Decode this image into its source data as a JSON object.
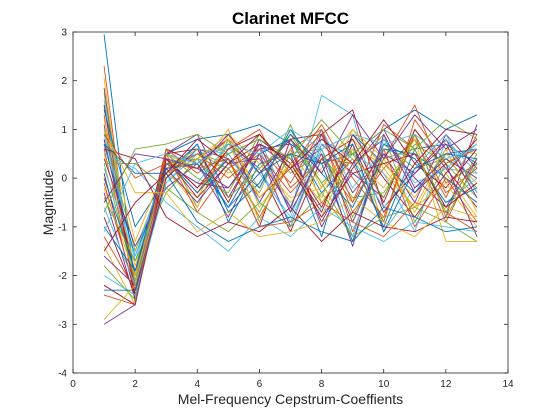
{
  "chart_data": {
    "type": "line",
    "title": "Clarinet MFCC",
    "xlabel": "Mel-Frequency Cepstrum-Coeffients",
    "ylabel": "Magnitude",
    "xlim": [
      0,
      14
    ],
    "ylim": [
      -4,
      3
    ],
    "xticks": [
      "0",
      "2",
      "4",
      "6",
      "8",
      "10",
      "12",
      "14"
    ],
    "yticks": [
      "-4",
      "-3",
      "-2",
      "-1",
      "0",
      "1",
      "2",
      "3"
    ],
    "grid": false,
    "legend": "none",
    "colors": [
      "#0072BD",
      "#D95319",
      "#EDB120",
      "#7E2F8E",
      "#77AC30",
      "#4DBEEE",
      "#A2142F"
    ],
    "x": [
      1,
      2,
      3,
      4,
      5,
      6,
      7,
      8,
      9,
      10,
      11,
      12,
      13
    ],
    "series": [
      {
        "values": [
          2.95,
          -2.2,
          0.5,
          0.8,
          0.9,
          1.1,
          0.7,
          0.3,
          0.5,
          1.0,
          1.4,
          1.0,
          1.3
        ]
      },
      {
        "values": [
          2.3,
          -2.6,
          0.3,
          0.4,
          0.8,
          -0.9,
          0.6,
          1.0,
          -1.1,
          0.4,
          1.5,
          -0.1,
          0.3
        ]
      },
      {
        "values": [
          2.05,
          -2.55,
          0.1,
          -0.4,
          0.7,
          -0.2,
          1.0,
          -0.2,
          0.8,
          0.1,
          -0.6,
          0.6,
          0.5
        ]
      },
      {
        "values": [
          1.85,
          -2.5,
          0.2,
          0.3,
          -0.8,
          0.5,
          -1.0,
          0.7,
          0.1,
          -0.4,
          0.9,
          -0.8,
          1.1
        ]
      },
      {
        "values": [
          1.75,
          -2.3,
          0.6,
          -0.6,
          0.8,
          0.1,
          0.9,
          -0.1,
          -1.2,
          0.7,
          0.2,
          0.4,
          -0.2
        ]
      },
      {
        "values": [
          1.6,
          -2.2,
          -0.1,
          0.5,
          0.2,
          0.6,
          -0.7,
          1.7,
          1.3,
          -1.1,
          -0.2,
          0.2,
          0.1
        ]
      },
      {
        "values": [
          1.5,
          -2.4,
          0.5,
          0.6,
          0.4,
          -1.0,
          0.8,
          0.9,
          1.4,
          -0.6,
          0.1,
          0.8,
          -0.3
        ]
      },
      {
        "values": [
          1.4,
          -1.0,
          0.0,
          0.7,
          -0.9,
          0.3,
          0.5,
          -1.2,
          0.9,
          0.3,
          -0.3,
          0.5,
          0.6
        ]
      },
      {
        "values": [
          1.3,
          -2.5,
          0.4,
          -0.3,
          0.6,
          1.0,
          -0.2,
          0.4,
          -0.5,
          1.1,
          0.6,
          -0.9,
          0.4
        ]
      },
      {
        "values": [
          1.2,
          -1.3,
          0.3,
          0.2,
          1.0,
          -0.6,
          0.3,
          -0.8,
          0.6,
          -0.9,
          1.0,
          0.1,
          -0.8
        ]
      },
      {
        "values": [
          1.1,
          -2.3,
          0.5,
          0.9,
          -0.4,
          0.7,
          0.2,
          0.6,
          -0.9,
          0.5,
          -0.5,
          0.9,
          0.2
        ]
      },
      {
        "values": [
          1.0,
          -1.5,
          0.2,
          0.5,
          0.3,
          -0.3,
          1.1,
          -0.5,
          0.2,
          0.9,
          -0.9,
          0.3,
          0.7
        ]
      },
      {
        "values": [
          0.9,
          -1.7,
          0.2,
          -0.5,
          0.5,
          0.8,
          -0.6,
          1.0,
          -0.2,
          0.6,
          0.4,
          -0.5,
          0.0
        ]
      },
      {
        "values": [
          0.8,
          -2.0,
          0.6,
          0.3,
          0.7,
          0.2,
          -1.1,
          0.4,
          0.8,
          -0.5,
          1.0,
          0.2,
          -0.6
        ]
      },
      {
        "values": [
          0.7,
          -1.6,
          0.1,
          0.4,
          -0.6,
          0.5,
          0.8,
          -0.3,
          0.4,
          -1.0,
          0.6,
          0.7,
          0.3
        ]
      },
      {
        "values": [
          0.6,
          -2.2,
          0.4,
          -0.2,
          0.4,
          -0.8,
          0.3,
          0.9,
          -0.7,
          0.2,
          0.8,
          -0.4,
          0.9
        ]
      },
      {
        "values": [
          0.5,
          -1.8,
          0.2,
          0.6,
          0.1,
          0.4,
          -0.5,
          0.2,
          1.0,
          0.4,
          -0.7,
          0.5,
          -0.1
        ]
      },
      {
        "values": [
          0.4,
          -1.4,
          -0.2,
          0.3,
          0.8,
          -0.5,
          0.6,
          -0.9,
          0.3,
          0.8,
          0.0,
          -0.6,
          0.4
        ]
      },
      {
        "values": [
          0.3,
          -2.1,
          0.5,
          0.0,
          -0.3,
          0.9,
          0.1,
          0.5,
          -0.4,
          -0.3,
          0.7,
          0.3,
          -0.4
        ]
      },
      {
        "values": [
          0.2,
          -1.6,
          0.3,
          0.5,
          0.6,
          0.2,
          -0.9,
          0.7,
          0.5,
          0.1,
          -1.1,
          0.8,
          0.1
        ]
      },
      {
        "values": [
          0.1,
          -2.4,
          0.4,
          -0.4,
          0.3,
          0.7,
          0.4,
          -0.6,
          0.7,
          -0.7,
          0.3,
          -0.2,
          0.6
        ]
      },
      {
        "values": [
          0.0,
          -1.9,
          0.1,
          0.7,
          -0.7,
          -0.1,
          0.9,
          0.3,
          -1.3,
          0.6,
          0.5,
          0.0,
          -0.5
        ]
      },
      {
        "values": [
          -0.1,
          -2.3,
          0.6,
          0.1,
          0.5,
          -0.4,
          0.2,
          1.1,
          0.0,
          -0.8,
          0.9,
          -0.3,
          0.2
        ]
      },
      {
        "values": [
          -0.2,
          -2.0,
          0.2,
          -0.6,
          0.9,
          0.3,
          -0.4,
          -0.2,
          0.6,
          0.3,
          -0.4,
          0.6,
          -0.7
        ]
      },
      {
        "values": [
          -0.3,
          -2.5,
          0.5,
          0.2,
          -0.2,
          0.6,
          0.7,
          -1.0,
          0.2,
          1.0,
          -0.2,
          0.4,
          0.0
        ]
      },
      {
        "values": [
          -0.4,
          -1.7,
          -0.3,
          0.4,
          0.2,
          -0.7,
          0.5,
          0.6,
          -0.8,
          0.4,
          0.6,
          -0.7,
          0.5
        ]
      },
      {
        "values": [
          -0.6,
          -2.2,
          0.3,
          -0.1,
          0.7,
          0.1,
          -0.8,
          0.8,
          0.4,
          -0.6,
          0.2,
          0.9,
          -0.3
        ]
      },
      {
        "values": [
          -0.8,
          -2.4,
          0.0,
          0.6,
          -0.5,
          0.8,
          0.3,
          -0.7,
          0.9,
          0.0,
          -0.8,
          0.1,
          0.8
        ]
      },
      {
        "values": [
          -1.0,
          -1.9,
          0.4,
          -0.3,
          0.4,
          -0.2,
          1.0,
          0.1,
          -0.6,
          0.7,
          0.4,
          -0.5,
          -0.2
        ]
      },
      {
        "values": [
          -1.2,
          -2.3,
          0.1,
          0.5,
          0.0,
          0.5,
          -0.3,
          0.4,
          0.3,
          -0.9,
          1.2,
          0.3,
          0.6
        ]
      },
      {
        "values": [
          -1.4,
          -2.6,
          0.5,
          0.2,
          0.8,
          -0.9,
          0.6,
          -0.4,
          1.0,
          0.2,
          -0.6,
          -0.1,
          -1.0
        ]
      },
      {
        "values": [
          -1.6,
          -2.2,
          0.2,
          -0.5,
          0.3,
          0.4,
          -0.6,
          0.9,
          -0.3,
          0.5,
          0.1,
          0.7,
          -0.4
        ]
      },
      {
        "values": [
          -1.8,
          -2.5,
          0.3,
          0.4,
          -0.4,
          0.2,
          0.8,
          -0.1,
          0.5,
          -0.4,
          0.9,
          -0.8,
          0.3
        ]
      },
      {
        "values": [
          -2.0,
          -2.4,
          -0.1,
          0.6,
          0.5,
          -0.5,
          -1.0,
          0.6,
          -1.2,
          0.8,
          -0.1,
          0.2,
          0.7
        ]
      },
      {
        "values": [
          -2.2,
          -2.6,
          0.4,
          -0.2,
          0.6,
          0.9,
          0.2,
          -0.8,
          0.1,
          0.3,
          0.5,
          -0.6,
          -0.1
        ]
      },
      {
        "values": [
          -2.3,
          -2.3,
          0.2,
          0.3,
          -0.6,
          0.1,
          0.5,
          0.3,
          0.7,
          -1.1,
          0.2,
          0.5,
          0.4
        ]
      },
      {
        "values": [
          -2.4,
          -2.6,
          0.5,
          -0.7,
          0.2,
          0.6,
          -0.1,
          1.0,
          -0.5,
          0.6,
          -1.0,
          0.0,
          -0.9
        ]
      },
      {
        "values": [
          -2.9,
          -2.2,
          0.1,
          0.4,
          0.9,
          -0.4,
          0.3,
          -0.5,
          0.4,
          -0.2,
          0.8,
          -1.3,
          -1.3
        ]
      },
      {
        "values": [
          -3.0,
          -2.6,
          0.3,
          -0.1,
          -0.2,
          0.7,
          -0.7,
          0.5,
          -1.4,
          0.9,
          -0.3,
          0.3,
          -1.2
        ]
      },
      {
        "values": [
          0.3,
          0.3,
          -0.2,
          -0.7,
          -1.1,
          -0.5,
          -1.0,
          -0.3,
          -1.2,
          -0.8,
          -0.6,
          -0.9,
          -1.3
        ]
      },
      {
        "values": [
          0.5,
          0.2,
          -0.5,
          -1.0,
          -1.5,
          -0.8,
          -1.2,
          -0.6,
          -1.0,
          -1.3,
          -0.9,
          -1.0,
          -1.1
        ]
      },
      {
        "values": [
          0.6,
          0.4,
          -0.8,
          -1.2,
          -0.9,
          -1.1,
          -0.6,
          -1.3,
          -0.7,
          -1.0,
          -1.1,
          -0.8,
          -0.9
        ]
      },
      {
        "values": [
          0.7,
          0.1,
          0.1,
          -0.9,
          -1.3,
          -1.0,
          -0.8,
          -1.1,
          -1.3,
          -0.6,
          -0.8,
          -1.1,
          -1.0
        ]
      },
      {
        "values": [
          0.9,
          0.0,
          0.3,
          0.2,
          0.4,
          -1.0,
          -0.9,
          -0.5,
          -0.9,
          -1.2,
          -0.5,
          -0.7,
          -1.1
        ]
      },
      {
        "values": [
          1.0,
          -0.3,
          -0.3,
          -1.1,
          -0.7,
          -1.2,
          -1.1,
          -0.9,
          -0.4,
          -0.9,
          -1.2,
          -0.6,
          -0.8
        ]
      },
      {
        "values": [
          -0.5,
          0.5,
          0.4,
          0.2,
          0.9,
          0.1,
          0.8,
          0.1,
          1.3,
          0.4,
          1.3,
          0.6,
          1.0
        ]
      },
      {
        "values": [
          -0.7,
          0.6,
          0.7,
          0.9,
          0.5,
          0.8,
          0.4,
          1.2,
          0.5,
          1.0,
          0.6,
          1.2,
          0.8
        ]
      },
      {
        "values": [
          -1.1,
          0.3,
          0.5,
          0.3,
          0.7,
          0.5,
          1.0,
          0.6,
          0.9,
          0.7,
          0.9,
          0.4,
          0.6
        ]
      },
      {
        "values": [
          -1.5,
          -0.5,
          0.1,
          0.8,
          0.3,
          0.9,
          0.2,
          0.8,
          0.3,
          1.2,
          0.3,
          1.0,
          0.9
        ]
      }
    ]
  }
}
